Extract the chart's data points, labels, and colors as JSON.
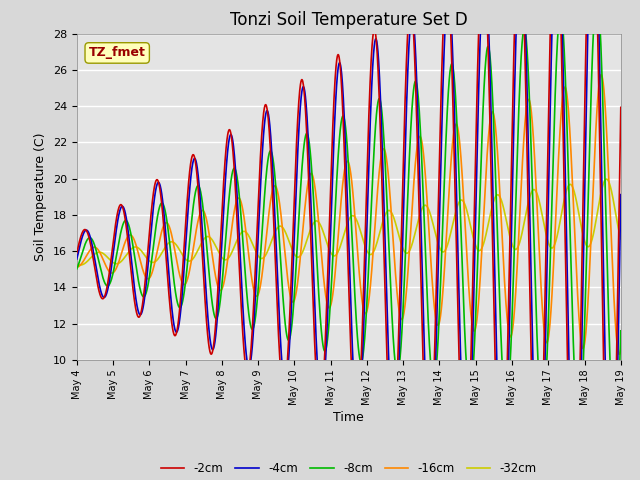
{
  "title": "Tonzi Soil Temperature Set D",
  "xlabel": "Time",
  "ylabel": "Soil Temperature (C)",
  "annotation": "TZ_fmet",
  "ylim": [
    10,
    28
  ],
  "series_labels": [
    "-2cm",
    "-4cm",
    "-8cm",
    "-16cm",
    "-32cm"
  ],
  "series_colors": [
    "#cc0000",
    "#0000cc",
    "#00bb00",
    "#ff8800",
    "#cccc00"
  ],
  "linewidth": 1.2,
  "title_fontsize": 12,
  "label_fontsize": 9,
  "tick_labels": [
    "May 4",
    "May 5",
    "May 6",
    "May 7",
    "May 8",
    "May 9",
    "May 10",
    "May 11",
    "May 12",
    "May 13",
    "May 14",
    "May 15",
    "May 16",
    "May 17",
    "May 18",
    "May 19"
  ]
}
